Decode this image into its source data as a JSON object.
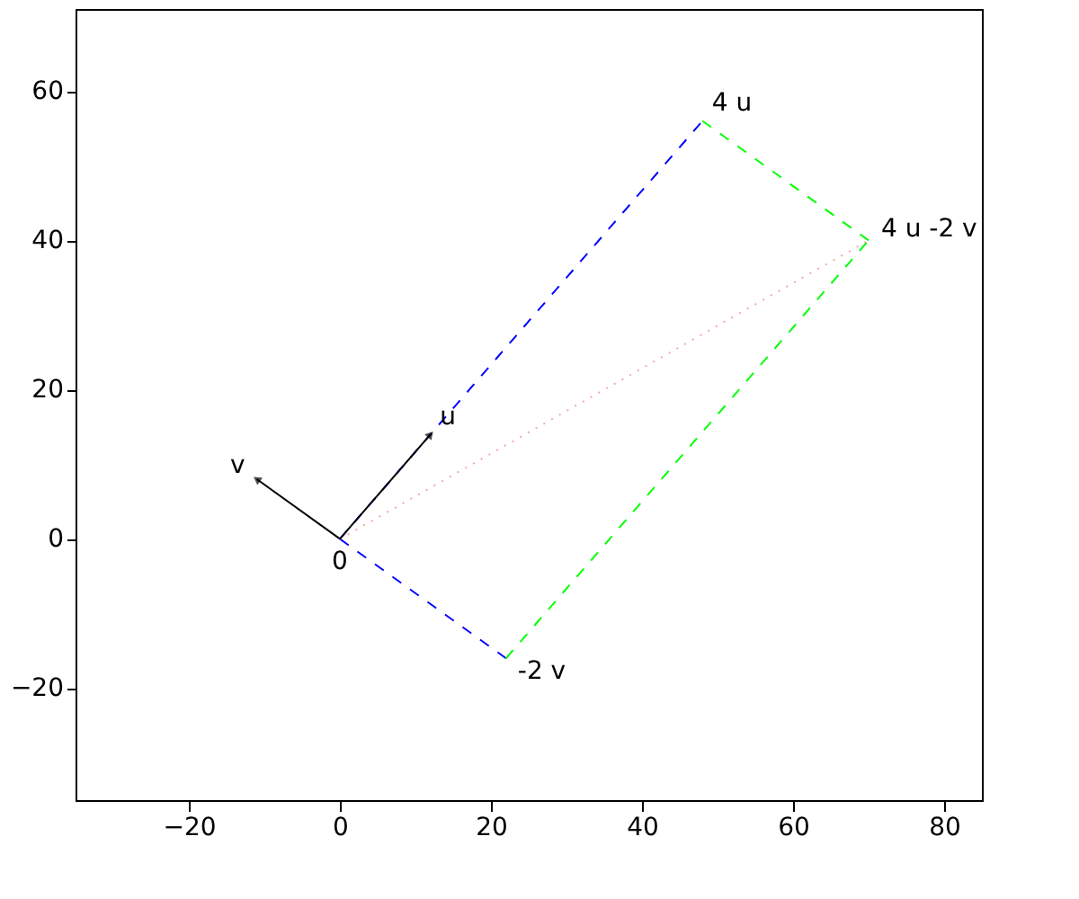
{
  "chart_data": {
    "type": "line",
    "xlim": [
      -35,
      85
    ],
    "ylim": [
      -35,
      71
    ],
    "xticks": [
      -20,
      0,
      20,
      40,
      60,
      80
    ],
    "yticks": [
      -20,
      0,
      20,
      40,
      60
    ],
    "grid": false,
    "series": [
      {
        "x": [
          0,
          48
        ],
        "values": [
          0,
          56
        ],
        "color": "#0000ff",
        "line_style": "dashed"
      },
      {
        "x": [
          0,
          22
        ],
        "values": [
          0,
          -16
        ],
        "color": "#0000ff",
        "line_style": "dashed"
      },
      {
        "x": [
          48,
          70
        ],
        "values": [
          56,
          40
        ],
        "color": "#00ff00",
        "line_style": "dashed"
      },
      {
        "x": [
          22,
          70
        ],
        "values": [
          -16,
          40
        ],
        "color": "#00ff00",
        "line_style": "dashed"
      },
      {
        "x": [
          0,
          70
        ],
        "values": [
          0,
          40
        ],
        "color": "#f0a8a8",
        "line_style": "dotted"
      },
      {
        "x": [
          0,
          12
        ],
        "values": [
          0,
          14
        ],
        "color": "#000000",
        "line_style": "solid",
        "marker": "triangle"
      },
      {
        "x": [
          0,
          -11
        ],
        "values": [
          0,
          8
        ],
        "color": "#000000",
        "line_style": "solid",
        "marker": "triangle"
      }
    ],
    "annotations": [
      {
        "text": "0",
        "x": 0,
        "y": 0
      },
      {
        "text": "u",
        "x": 12,
        "y": 14
      },
      {
        "text": "v",
        "x": -11,
        "y": 8
      },
      {
        "text": "4 u",
        "x": 48,
        "y": 56
      },
      {
        "text": "4 u -2 v",
        "x": 70,
        "y": 40
      },
      {
        "text": "-2 v",
        "x": 22,
        "y": -16
      }
    ]
  }
}
